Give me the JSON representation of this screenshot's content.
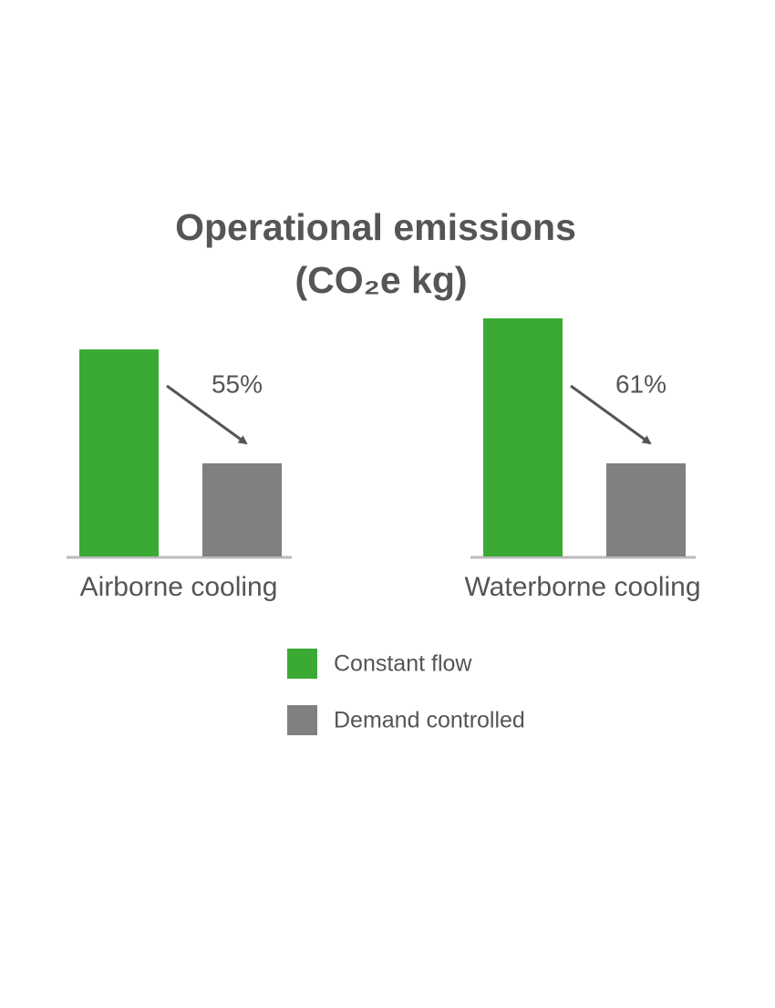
{
  "chart_data": {
    "type": "bar",
    "title": "Operational emissions",
    "subtitle": "(CO₂e kg)",
    "categories": [
      "Airborne cooling",
      "Waterborne cooling"
    ],
    "series": [
      {
        "name": "Constant flow",
        "color": "#3aaa35",
        "values": [
          100,
          115
        ]
      },
      {
        "name": "Demand controlled",
        "color": "#808080",
        "values": [
          45,
          45
        ]
      }
    ],
    "annotations": [
      "55%",
      "61%"
    ],
    "ylim": [
      0,
      115
    ]
  }
}
